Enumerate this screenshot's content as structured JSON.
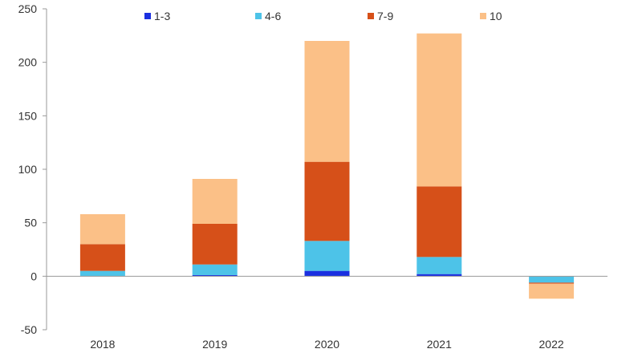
{
  "chart_data": {
    "type": "bar",
    "stacked": true,
    "categories": [
      "2018",
      "2019",
      "2020",
      "2021",
      "2022"
    ],
    "series": [
      {
        "name": "1-3",
        "color": "#1a2fe0",
        "values": [
          0,
          1,
          5,
          2,
          0
        ]
      },
      {
        "name": "4-6",
        "color": "#4dc3e8",
        "values": [
          5,
          10,
          28,
          16,
          -6
        ]
      },
      {
        "name": "7-9",
        "color": "#d65019",
        "values": [
          25,
          38,
          74,
          66,
          -1
        ]
      },
      {
        "name": "10",
        "color": "#fbc087",
        "values": [
          28,
          42,
          113,
          143,
          -14
        ]
      }
    ],
    "ylim": [
      -50,
      250
    ],
    "yticks": [
      -50,
      0,
      50,
      100,
      150,
      200,
      250
    ],
    "title": "",
    "xlabel": "",
    "ylabel": "",
    "grid": false,
    "legend": "top"
  }
}
